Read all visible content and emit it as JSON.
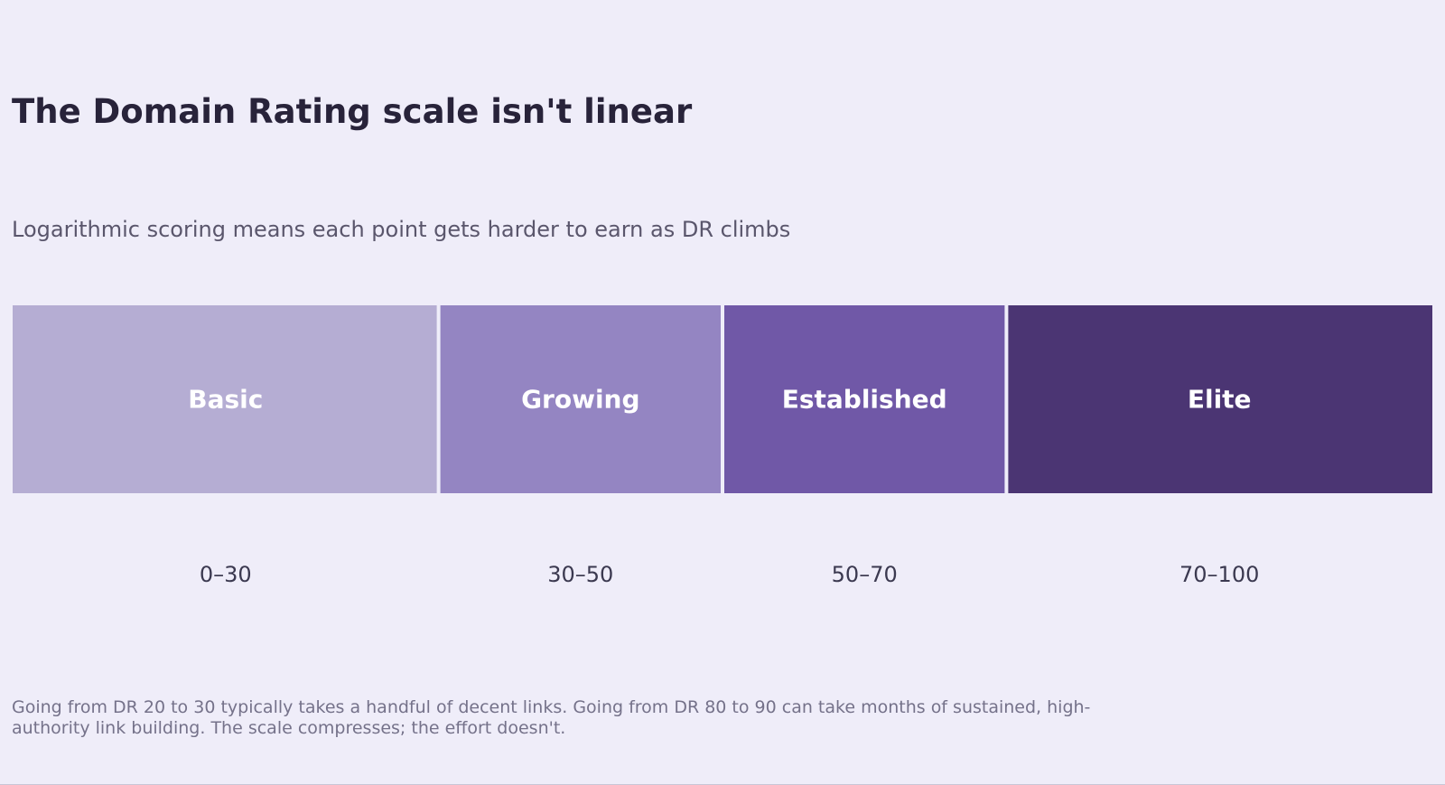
{
  "header": {
    "title": "The Domain Rating scale isn't linear",
    "subtitle": "Logarithmic scoring means each point gets harder to earn as DR climbs"
  },
  "chart_data": {
    "type": "bar",
    "orientation": "horizontal-segmented",
    "xlim": [
      0,
      100
    ],
    "grid": false,
    "legend": "none",
    "segments": [
      {
        "label": "Basic",
        "range_label": "0–30",
        "start": 0,
        "end": 30,
        "color": "#b5add3"
      },
      {
        "label": "Growing",
        "range_label": "30–50",
        "start": 30,
        "end": 50,
        "color": "#9485c2"
      },
      {
        "label": "Established",
        "range_label": "50–70",
        "start": 50,
        "end": 70,
        "color": "#7058a7"
      },
      {
        "label": "Elite",
        "range_label": "70–100",
        "start": 70,
        "end": 100,
        "color": "#4b3573"
      }
    ]
  },
  "footnote": "Going from DR 20 to 30 typically takes a handful of decent links. Going from DR 80 to 90 can take months of sustained, high-authority link building. The scale compresses; the effort doesn't."
}
